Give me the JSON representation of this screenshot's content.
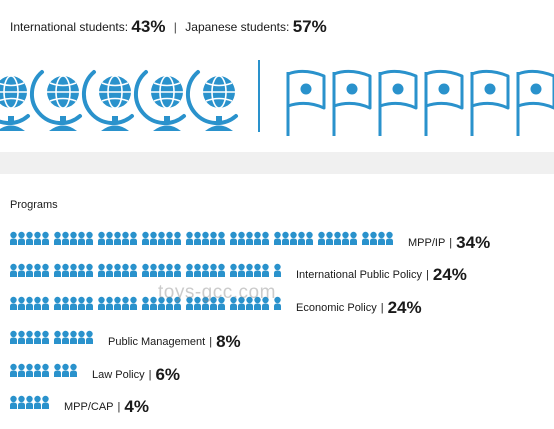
{
  "students": {
    "international_label": "International students:",
    "international_pct": "43%",
    "separator": "|",
    "japanese_label": "Japanese students:",
    "japanese_pct": "57%"
  },
  "programs_title": "Programs",
  "watermark": "toys-gcc.com",
  "colors": {
    "accent": "#2a92cc",
    "text": "#1a1a1a",
    "gap": "#f0f0f0"
  },
  "icons": {
    "international": "globe-icon",
    "japanese": "japan-flag-icon",
    "program": "student-icon"
  },
  "chart_data": [
    {
      "type": "pictograph",
      "title": "",
      "series": [
        {
          "name": "International students",
          "value": 43,
          "icon": "globe-icon"
        },
        {
          "name": "Japanese students",
          "value": 57,
          "icon": "japan-flag-icon"
        }
      ]
    },
    {
      "type": "bar",
      "title": "Programs",
      "categories": [
        "MPP/IP",
        "International Public Policy",
        "Economic Policy",
        "Public Management",
        "Law Policy",
        "MPP/CAP"
      ],
      "values": [
        34,
        24,
        24,
        8,
        6,
        4
      ],
      "labels": [
        "MPP/IP",
        "International Public Policy",
        "Economic Policy",
        "Public Management",
        "Law Policy",
        "MPP/CAP"
      ],
      "value_labels": [
        "34%",
        "24%",
        "24%",
        "8%",
        "6%",
        "4%"
      ],
      "separator": "|",
      "icon": "student-icon"
    }
  ]
}
